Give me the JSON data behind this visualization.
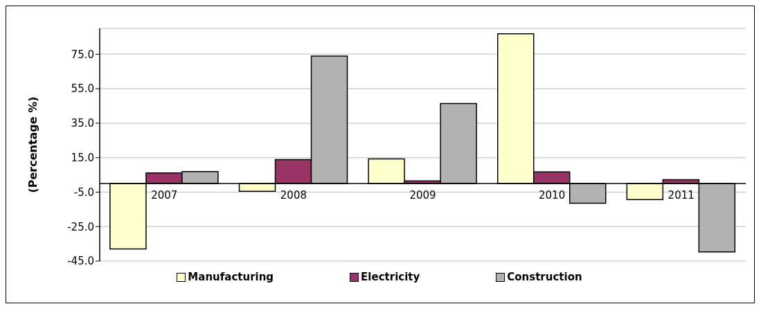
{
  "chart_data": {
    "type": "bar",
    "ylabel": "(Percentage %)",
    "categories": [
      "2007",
      "2008",
      "2009",
      "2010",
      "2011"
    ],
    "series": [
      {
        "name": "Manufacturing",
        "color": "#ffffcc",
        "values": [
          -38.0,
          -4.5,
          14.3,
          86.9,
          -9.3
        ]
      },
      {
        "name": "Electricity",
        "color": "#993366",
        "values": [
          6.1,
          13.9,
          1.5,
          6.7,
          2.2
        ]
      },
      {
        "name": "Construction",
        "color": "#b2b2b2",
        "values": [
          6.9,
          73.9,
          46.4,
          -11.5,
          -39.7
        ]
      }
    ],
    "ylim": [
      -45,
      90
    ],
    "yticks": [
      {
        "value": -45,
        "label": "-45.0"
      },
      {
        "value": -25,
        "label": "-25.0"
      },
      {
        "value": -5,
        "label": "-5.0"
      },
      {
        "value": 15,
        "label": "15.0"
      },
      {
        "value": 35,
        "label": "35.0"
      },
      {
        "value": 55,
        "label": "55.0"
      },
      {
        "value": 75,
        "label": "75.0"
      }
    ],
    "grid": "y",
    "legend": "bottom"
  }
}
